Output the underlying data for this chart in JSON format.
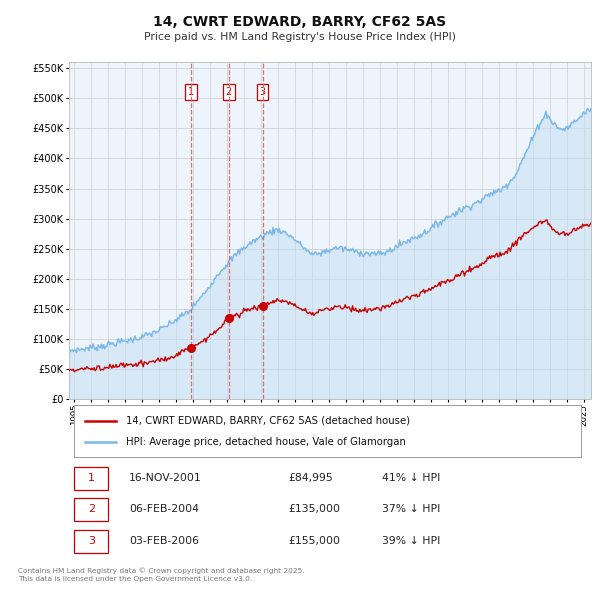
{
  "title": "14, CWRT EDWARD, BARRY, CF62 5AS",
  "subtitle": "Price paid vs. HM Land Registry's House Price Index (HPI)",
  "legend_line1": "14, CWRT EDWARD, BARRY, CF62 5AS (detached house)",
  "legend_line2": "HPI: Average price, detached house, Vale of Glamorgan",
  "footer": "Contains HM Land Registry data © Crown copyright and database right 2025.\nThis data is licensed under the Open Government Licence v3.0.",
  "transactions": [
    {
      "num": 1,
      "date": "16-NOV-2001",
      "price": "£84,995",
      "pct": "41% ↓ HPI",
      "x_year": 2001.88,
      "y_val": 84995
    },
    {
      "num": 2,
      "date": "06-FEB-2004",
      "price": "£135,000",
      "pct": "37% ↓ HPI",
      "x_year": 2004.09,
      "y_val": 135000
    },
    {
      "num": 3,
      "date": "03-FEB-2006",
      "price": "£155,000",
      "pct": "39% ↓ HPI",
      "x_year": 2006.09,
      "y_val": 155000
    }
  ],
  "red_line_color": "#cc0000",
  "blue_line_color": "#7ab8e8",
  "blue_fill_color": "#c5dff5",
  "vline_color": "#e06060",
  "background_color": "#ffffff",
  "chart_bg_color": "#eef4fb",
  "grid_color": "#cccccc",
  "ylim": [
    0,
    560000
  ],
  "yticks": [
    0,
    50000,
    100000,
    150000,
    200000,
    250000,
    300000,
    350000,
    400000,
    450000,
    500000,
    550000
  ],
  "xlim_start": 1994.7,
  "xlim_end": 2025.4
}
